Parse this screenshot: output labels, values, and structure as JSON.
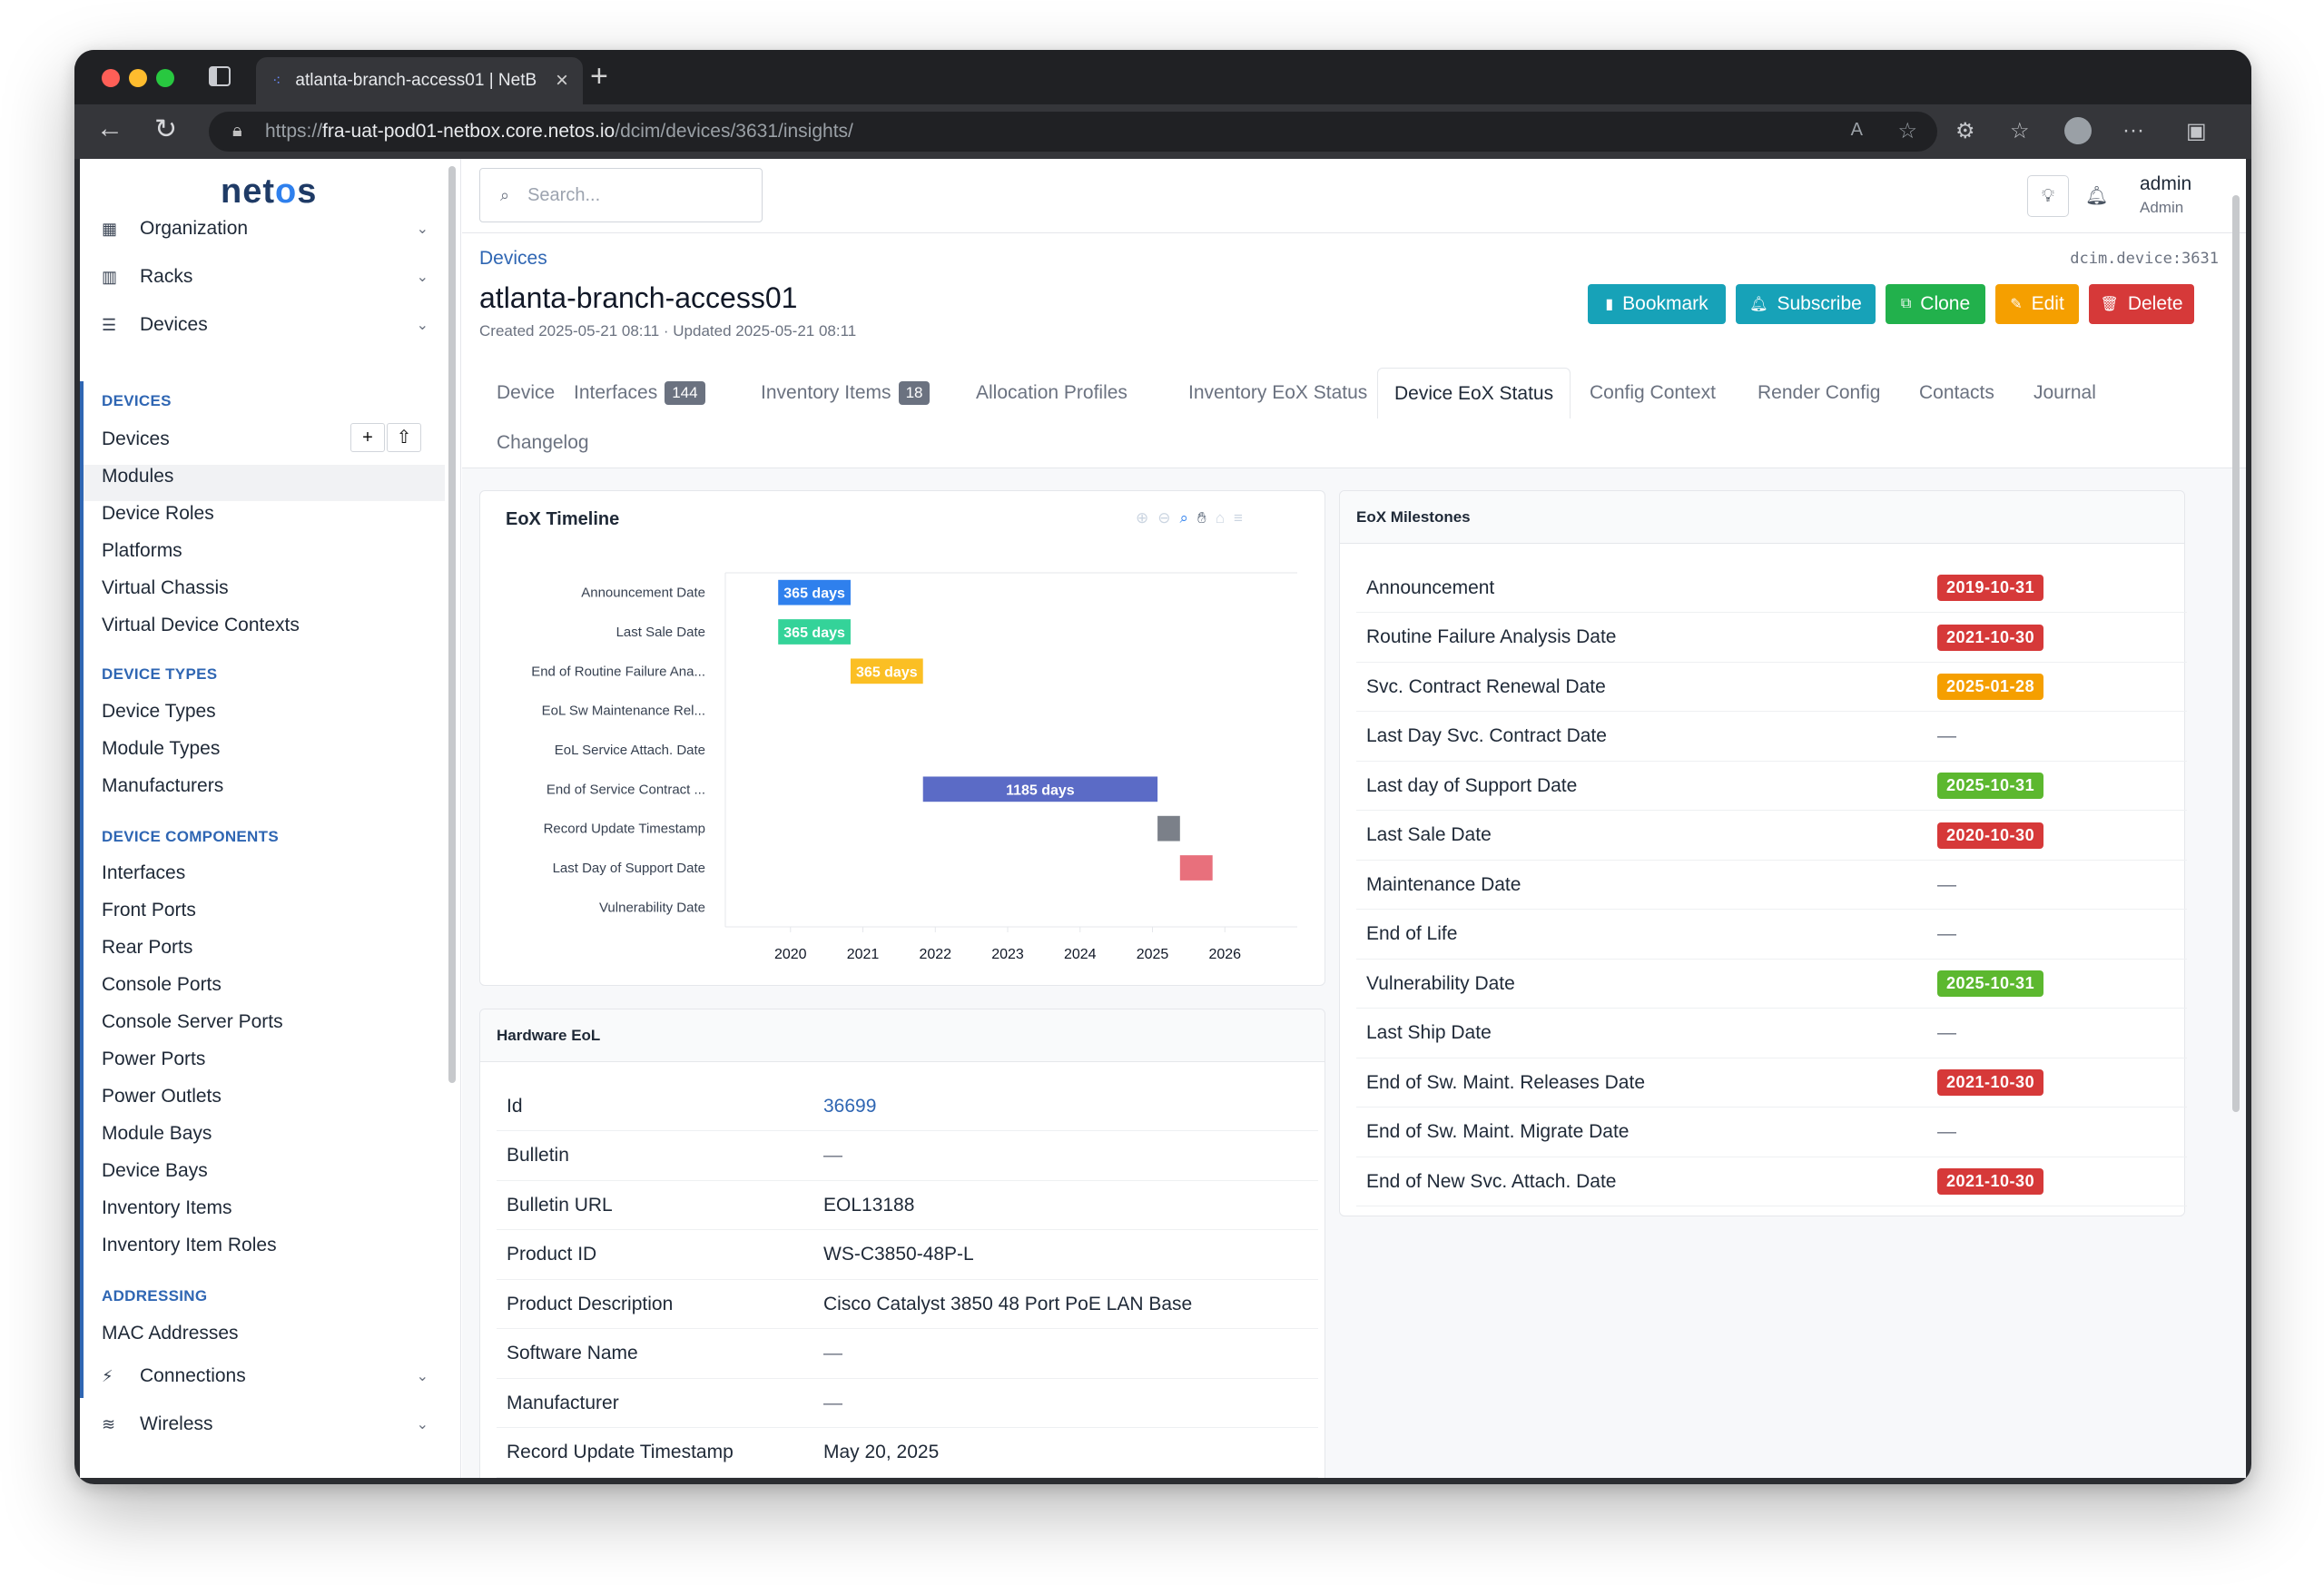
{
  "browser": {
    "tab_title": "atlanta-branch-access01 | NetB",
    "url_scheme": "https://",
    "url_host": "fra-uat-pod01-netbox.core.netos.io",
    "url_path": "/dcim/devices/3631/insights/"
  },
  "sidebar": {
    "logo": "netos",
    "top_items": [
      {
        "label": "Organization",
        "icon": "building-icon"
      },
      {
        "label": "Racks",
        "icon": "rack-icon"
      },
      {
        "label": "Devices",
        "icon": "server-icon"
      }
    ],
    "sections": [
      {
        "title": "DEVICES",
        "items": [
          "Devices",
          "Modules",
          "Device Roles",
          "Platforms",
          "Virtual Chassis",
          "Virtual Device Contexts"
        ]
      },
      {
        "title": "DEVICE TYPES",
        "items": [
          "Device Types",
          "Module Types",
          "Manufacturers"
        ]
      },
      {
        "title": "DEVICE COMPONENTS",
        "items": [
          "Interfaces",
          "Front Ports",
          "Rear Ports",
          "Console Ports",
          "Console Server Ports",
          "Power Ports",
          "Power Outlets",
          "Module Bays",
          "Device Bays",
          "Inventory Items",
          "Inventory Item Roles"
        ]
      },
      {
        "title": "ADDRESSING",
        "items": [
          "MAC Addresses"
        ]
      }
    ],
    "bottom_items": [
      {
        "label": "Connections",
        "icon": "plug-icon"
      },
      {
        "label": "Wireless",
        "icon": "wifi-icon"
      }
    ]
  },
  "topbar": {
    "search_placeholder": "Search...",
    "user_name": "admin",
    "user_role": "Admin"
  },
  "page": {
    "breadcrumb": "Devices",
    "object_id": "dcim.device:3631",
    "title": "atlanta-branch-access01",
    "meta": "Created 2025-05-21 08:11 · Updated 2025-05-21 08:11",
    "buttons": {
      "bookmark": "Bookmark",
      "subscribe": "Subscribe",
      "clone": "Clone",
      "edit": "Edit",
      "delete": "Delete"
    },
    "colors": {
      "bookmark": "#17a2b8",
      "subscribe": "#17a2b8",
      "clone": "#22b14c",
      "edit": "#f59f00",
      "delete": "#d63939"
    }
  },
  "tabs": [
    {
      "label": "Device"
    },
    {
      "label": "Interfaces",
      "count": "144"
    },
    {
      "label": "Inventory Items",
      "count": "18"
    },
    {
      "label": "Allocation Profiles"
    },
    {
      "label": "Inventory EoX Status"
    },
    {
      "label": "Device EoX Status",
      "active": true
    },
    {
      "label": "Config Context"
    },
    {
      "label": "Render Config"
    },
    {
      "label": "Contacts"
    },
    {
      "label": "Journal"
    },
    {
      "label": "Changelog"
    }
  ],
  "timeline_card": {
    "title": "EoX Timeline"
  },
  "chart_data": {
    "type": "bar",
    "orientation": "horizontal-range",
    "categories": [
      "Announcement Date",
      "Last Sale Date",
      "End of Routine Failure Ana...",
      "EoL Sw Maintenance Rel...",
      "EoL Service Attach. Date",
      "End of Service Contract ...",
      "Record Update Timestamp",
      "Last Day of Support Date",
      "Vulnerability Date"
    ],
    "ranges": [
      {
        "category": "Announcement Date",
        "start": 2019.83,
        "end": 2020.83,
        "label": "365 days",
        "color": "#2f80ed"
      },
      {
        "category": "Last Sale Date",
        "start": 2019.83,
        "end": 2020.83,
        "label": "365 days",
        "color": "#34d399"
      },
      {
        "category": "End of Routine Failure Ana...",
        "start": 2020.83,
        "end": 2021.83,
        "label": "365 days",
        "color": "#fbbf24"
      },
      {
        "category": "End of Service Contract ...",
        "start": 2021.83,
        "end": 2025.07,
        "label": "1185 days",
        "color": "#5b6bc6"
      },
      {
        "category": "Record Update Timestamp",
        "start": 2025.07,
        "end": 2025.38,
        "label": "",
        "color": "#7b8089"
      },
      {
        "category": "Last Day of Support Date",
        "start": 2025.38,
        "end": 2025.83,
        "label": "",
        "color": "#e8707c"
      }
    ],
    "x_ticks": [
      "2020",
      "2021",
      "2022",
      "2023",
      "2024",
      "2025",
      "2026"
    ],
    "xlim": [
      2019.1,
      2027.0
    ],
    "grid": false
  },
  "hardware_card": {
    "title": "Hardware EoL",
    "rows": [
      {
        "k": "Id",
        "v": "36699",
        "link": true
      },
      {
        "k": "Bulletin",
        "v": "—"
      },
      {
        "k": "Bulletin URL",
        "v": "EOL13188"
      },
      {
        "k": "Product ID",
        "v": "WS-C3850-48P-L"
      },
      {
        "k": "Product Description",
        "v": "Cisco Catalyst 3850 48 Port PoE LAN Base"
      },
      {
        "k": "Software Name",
        "v": "—"
      },
      {
        "k": "Manufacturer",
        "v": "—"
      },
      {
        "k": "Record Update Timestamp",
        "v": "May 20, 2025"
      }
    ]
  },
  "milestones_card": {
    "title": "EoX Milestones",
    "rows": [
      {
        "k": "Announcement",
        "v": "2019-10-31",
        "color": "#d63939"
      },
      {
        "k": "Routine Failure Analysis Date",
        "v": "2021-10-30",
        "color": "#d63939"
      },
      {
        "k": "Svc. Contract Renewal Date",
        "v": "2025-01-28",
        "color": "#f59f00"
      },
      {
        "k": "Last Day Svc. Contract Date",
        "v": "—"
      },
      {
        "k": "Last day of Support Date",
        "v": "2025-10-31",
        "color": "#5cb82f"
      },
      {
        "k": "Last Sale Date",
        "v": "2020-10-30",
        "color": "#d63939"
      },
      {
        "k": "Maintenance Date",
        "v": "—"
      },
      {
        "k": "End of Life",
        "v": "—"
      },
      {
        "k": "Vulnerability Date",
        "v": "2025-10-31",
        "color": "#5cb82f"
      },
      {
        "k": "Last Ship Date",
        "v": "—"
      },
      {
        "k": "End of Sw. Maint. Releases Date",
        "v": "2021-10-30",
        "color": "#d63939"
      },
      {
        "k": "End of Sw. Maint. Migrate Date",
        "v": "—"
      },
      {
        "k": "End of New Svc. Attach. Date",
        "v": "2021-10-30",
        "color": "#d63939"
      }
    ]
  }
}
